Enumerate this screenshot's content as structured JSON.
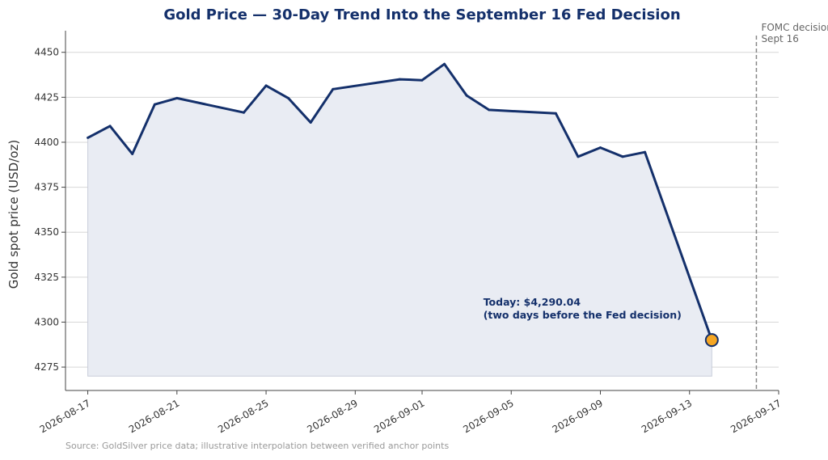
{
  "chart_data": {
    "type": "line",
    "title": "Gold Price — 30-Day Trend Into the September 16 Fed Decision",
    "ylabel": "Gold spot price (USD/oz)",
    "xlabel": "",
    "ylim": [
      4262,
      4462
    ],
    "xlim": [
      "2026-08-16",
      "2026-09-17"
    ],
    "yticks": [
      4275,
      4300,
      4325,
      4350,
      4375,
      4400,
      4425,
      4450
    ],
    "xticks": [
      "2026-08-17",
      "2026-08-21",
      "2026-08-25",
      "2026-08-29",
      "2026-09-01",
      "2026-09-05",
      "2026-09-09",
      "2026-09-13",
      "2026-09-17"
    ],
    "grid": "horizontal",
    "series": [
      {
        "x": [
          "2026-08-17",
          "2026-08-18",
          "2026-08-19",
          "2026-08-20",
          "2026-08-21",
          "2026-08-24",
          "2026-08-25",
          "2026-08-26",
          "2026-08-27",
          "2026-08-28",
          "2026-08-31",
          "2026-09-01",
          "2026-09-02",
          "2026-09-03",
          "2026-09-04",
          "2026-09-07",
          "2026-09-08",
          "2026-09-09",
          "2026-09-10",
          "2026-09-11",
          "2026-09-14"
        ],
        "values": [
          4402.5,
          4409,
          4393.5,
          4421,
          4424.5,
          4416.5,
          4431.5,
          4424.5,
          4411,
          4429.5,
          4435,
          4434.5,
          4443.5,
          4426,
          4418,
          4416,
          4392,
          4397,
          4392,
          4394.5,
          4290.04
        ],
        "color": "#14306b"
      }
    ],
    "highlight_point": {
      "x": "2026-09-14",
      "y": 4290.04,
      "color": "#f5a623"
    },
    "annotation": {
      "x": "2026-09-04",
      "y": 4303,
      "line1": "Today: $4,290.04",
      "line2": "(two days before the Fed decision)"
    },
    "vline": {
      "x": "2026-09-16",
      "line1": "FOMC decision",
      "line2": "Sept 16",
      "color": "#888888"
    },
    "source": "Source: GoldSilver price data; illustrative interpolation between verified anchor points",
    "fill_baseline": 4270,
    "fill_color": "#e9ecf3",
    "accent_color": "#14306b"
  }
}
